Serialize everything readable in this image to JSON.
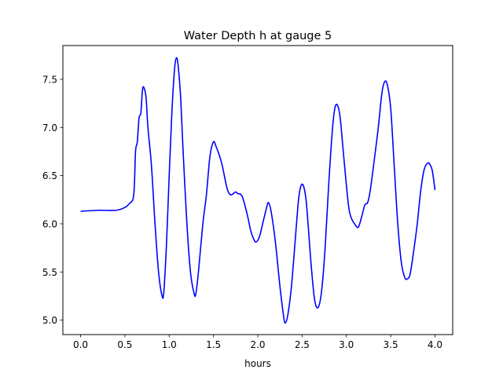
{
  "chart_data": {
    "type": "line",
    "title": "Water Depth h at gauge 5",
    "xlabel": "hours",
    "ylabel": "",
    "xlim": [
      -0.2,
      4.2
    ],
    "ylim": [
      4.85,
      7.85
    ],
    "xticks": [
      0.0,
      0.5,
      1.0,
      1.5,
      2.0,
      2.5,
      3.0,
      3.5,
      4.0
    ],
    "xtick_labels": [
      "0.0",
      "0.5",
      "1.0",
      "1.5",
      "2.0",
      "2.5",
      "3.0",
      "3.5",
      "4.0"
    ],
    "yticks": [
      5.0,
      5.5,
      6.0,
      6.5,
      7.0,
      7.5
    ],
    "ytick_labels": [
      "5.0",
      "5.5",
      "6.0",
      "6.5",
      "7.0",
      "7.5"
    ],
    "grid": false,
    "series": [
      {
        "color": "#0000ff",
        "x": [
          0.0,
          0.2,
          0.4,
          0.5,
          0.55,
          0.6,
          0.62,
          0.64,
          0.66,
          0.68,
          0.7,
          0.72,
          0.74,
          0.76,
          0.8,
          0.84,
          0.88,
          0.92,
          0.94,
          0.97,
          1.0,
          1.03,
          1.06,
          1.08,
          1.1,
          1.13,
          1.16,
          1.2,
          1.24,
          1.28,
          1.3,
          1.33,
          1.38,
          1.42,
          1.46,
          1.5,
          1.53,
          1.57,
          1.6,
          1.65,
          1.68,
          1.7,
          1.72,
          1.75,
          1.78,
          1.8,
          1.83,
          1.88,
          1.92,
          1.95,
          1.98,
          2.02,
          2.06,
          2.1,
          2.12,
          2.15,
          2.2,
          2.25,
          2.29,
          2.31,
          2.34,
          2.38,
          2.42,
          2.46,
          2.49,
          2.52,
          2.55,
          2.6,
          2.64,
          2.68,
          2.72,
          2.76,
          2.8,
          2.84,
          2.87,
          2.9,
          2.93,
          2.96,
          3.0,
          3.03,
          3.06,
          3.1,
          3.13,
          3.15,
          3.18,
          3.21,
          3.24,
          3.27,
          3.32,
          3.36,
          3.4,
          3.43,
          3.46,
          3.5,
          3.54,
          3.58,
          3.62,
          3.66,
          3.69,
          3.72,
          3.76,
          3.8,
          3.84,
          3.88,
          3.92,
          3.94,
          3.97,
          4.0
        ],
        "y": [
          6.13,
          6.14,
          6.14,
          6.17,
          6.21,
          6.3,
          6.75,
          6.85,
          7.1,
          7.15,
          7.4,
          7.4,
          7.3,
          7.0,
          6.6,
          6.0,
          5.5,
          5.25,
          5.3,
          5.8,
          6.5,
          7.15,
          7.6,
          7.72,
          7.65,
          7.3,
          6.7,
          6.0,
          5.5,
          5.28,
          5.27,
          5.5,
          6.0,
          6.3,
          6.7,
          6.85,
          6.8,
          6.7,
          6.6,
          6.38,
          6.31,
          6.3,
          6.31,
          6.33,
          6.31,
          6.31,
          6.27,
          6.1,
          5.93,
          5.85,
          5.81,
          5.87,
          6.02,
          6.17,
          6.22,
          6.13,
          5.8,
          5.35,
          5.05,
          4.97,
          5.06,
          5.35,
          5.8,
          6.25,
          6.4,
          6.38,
          6.2,
          5.6,
          5.22,
          5.13,
          5.3,
          5.75,
          6.4,
          6.95,
          7.2,
          7.23,
          7.1,
          6.8,
          6.4,
          6.15,
          6.05,
          5.99,
          5.96,
          6.0,
          6.1,
          6.2,
          6.22,
          6.35,
          6.7,
          7.0,
          7.35,
          7.47,
          7.45,
          7.2,
          6.6,
          6.0,
          5.6,
          5.44,
          5.43,
          5.48,
          5.72,
          6.0,
          6.35,
          6.57,
          6.63,
          6.62,
          6.55,
          6.35
        ]
      }
    ]
  }
}
